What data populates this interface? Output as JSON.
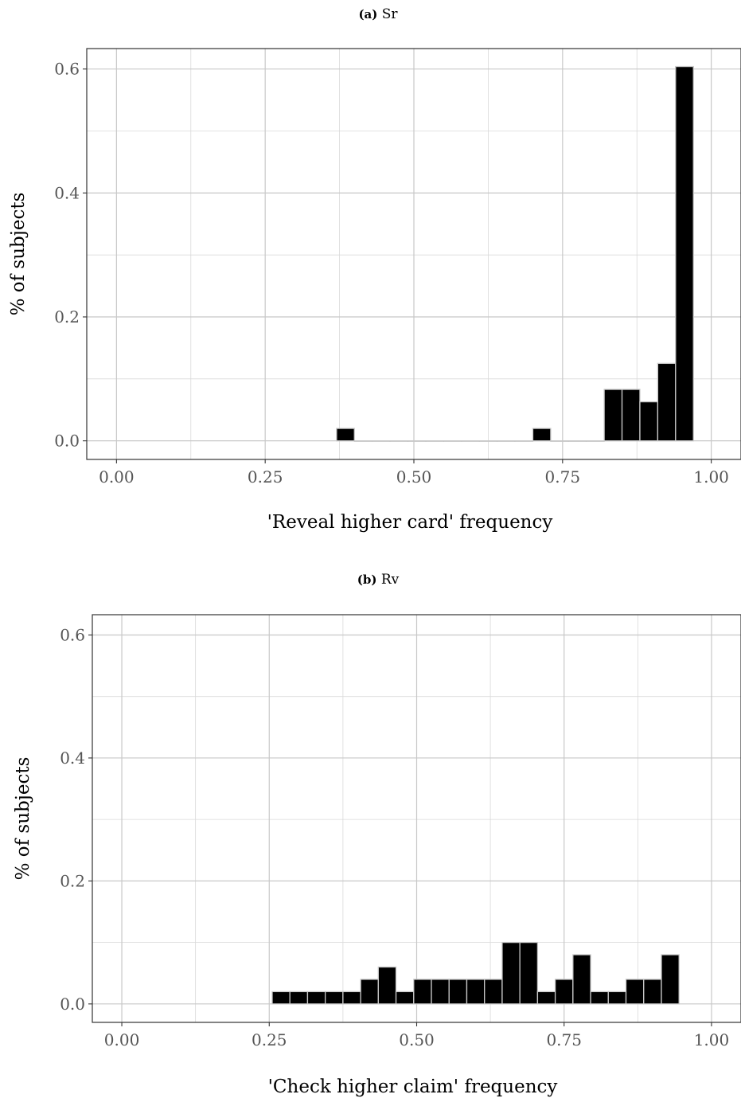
{
  "chart_data": [
    {
      "type": "bar",
      "panel_letter": "(a)",
      "title": "Sr",
      "xlabel": "'Reveal higher card' frequency",
      "ylabel": "% of subjects",
      "xlim": [
        -0.05,
        1.05
      ],
      "ylim": [
        -0.03,
        0.633
      ],
      "xticks": [
        0.0,
        0.25,
        0.5,
        0.75,
        1.0
      ],
      "xtick_labels": [
        "0.00",
        "0.25",
        "0.50",
        "0.75",
        "1.00"
      ],
      "yticks": [
        0.0,
        0.2,
        0.4,
        0.6
      ],
      "ytick_labels": [
        "0.0",
        "0.2",
        "0.4",
        "0.6"
      ],
      "bin_width": 0.03,
      "bins_start": 0.37,
      "bins_end": 1.0,
      "values": [
        0.02,
        0,
        0,
        0,
        0,
        0,
        0,
        0,
        0,
        0,
        0,
        0.02,
        0,
        0,
        0,
        0.083,
        0.083,
        0.063,
        0.125,
        0.604
      ],
      "grid": true
    },
    {
      "type": "bar",
      "panel_letter": "(b)",
      "title": "Rv",
      "xlabel": "'Check higher claim' frequency",
      "ylabel": "% of subjects",
      "xlim": [
        -0.05,
        1.05
      ],
      "ylim": [
        -0.03,
        0.633
      ],
      "xticks": [
        0.0,
        0.25,
        0.5,
        0.75,
        1.0
      ],
      "xtick_labels": [
        "0.00",
        "0.25",
        "0.50",
        "0.75",
        "1.00"
      ],
      "yticks": [
        0.0,
        0.2,
        0.4,
        0.6
      ],
      "ytick_labels": [
        "0.0",
        "0.2",
        "0.4",
        "0.6"
      ],
      "bin_width": 0.03,
      "bins_start": 0.255,
      "bins_end": 0.945,
      "values": [
        0.02,
        0.02,
        0.02,
        0.02,
        0.02,
        0.04,
        0.06,
        0.02,
        0.04,
        0.04,
        0.04,
        0.04,
        0.04,
        0.1,
        0.1,
        0.02,
        0.04,
        0.08,
        0.02,
        0.02,
        0.04,
        0.04,
        0.08
      ],
      "grid": true
    }
  ]
}
